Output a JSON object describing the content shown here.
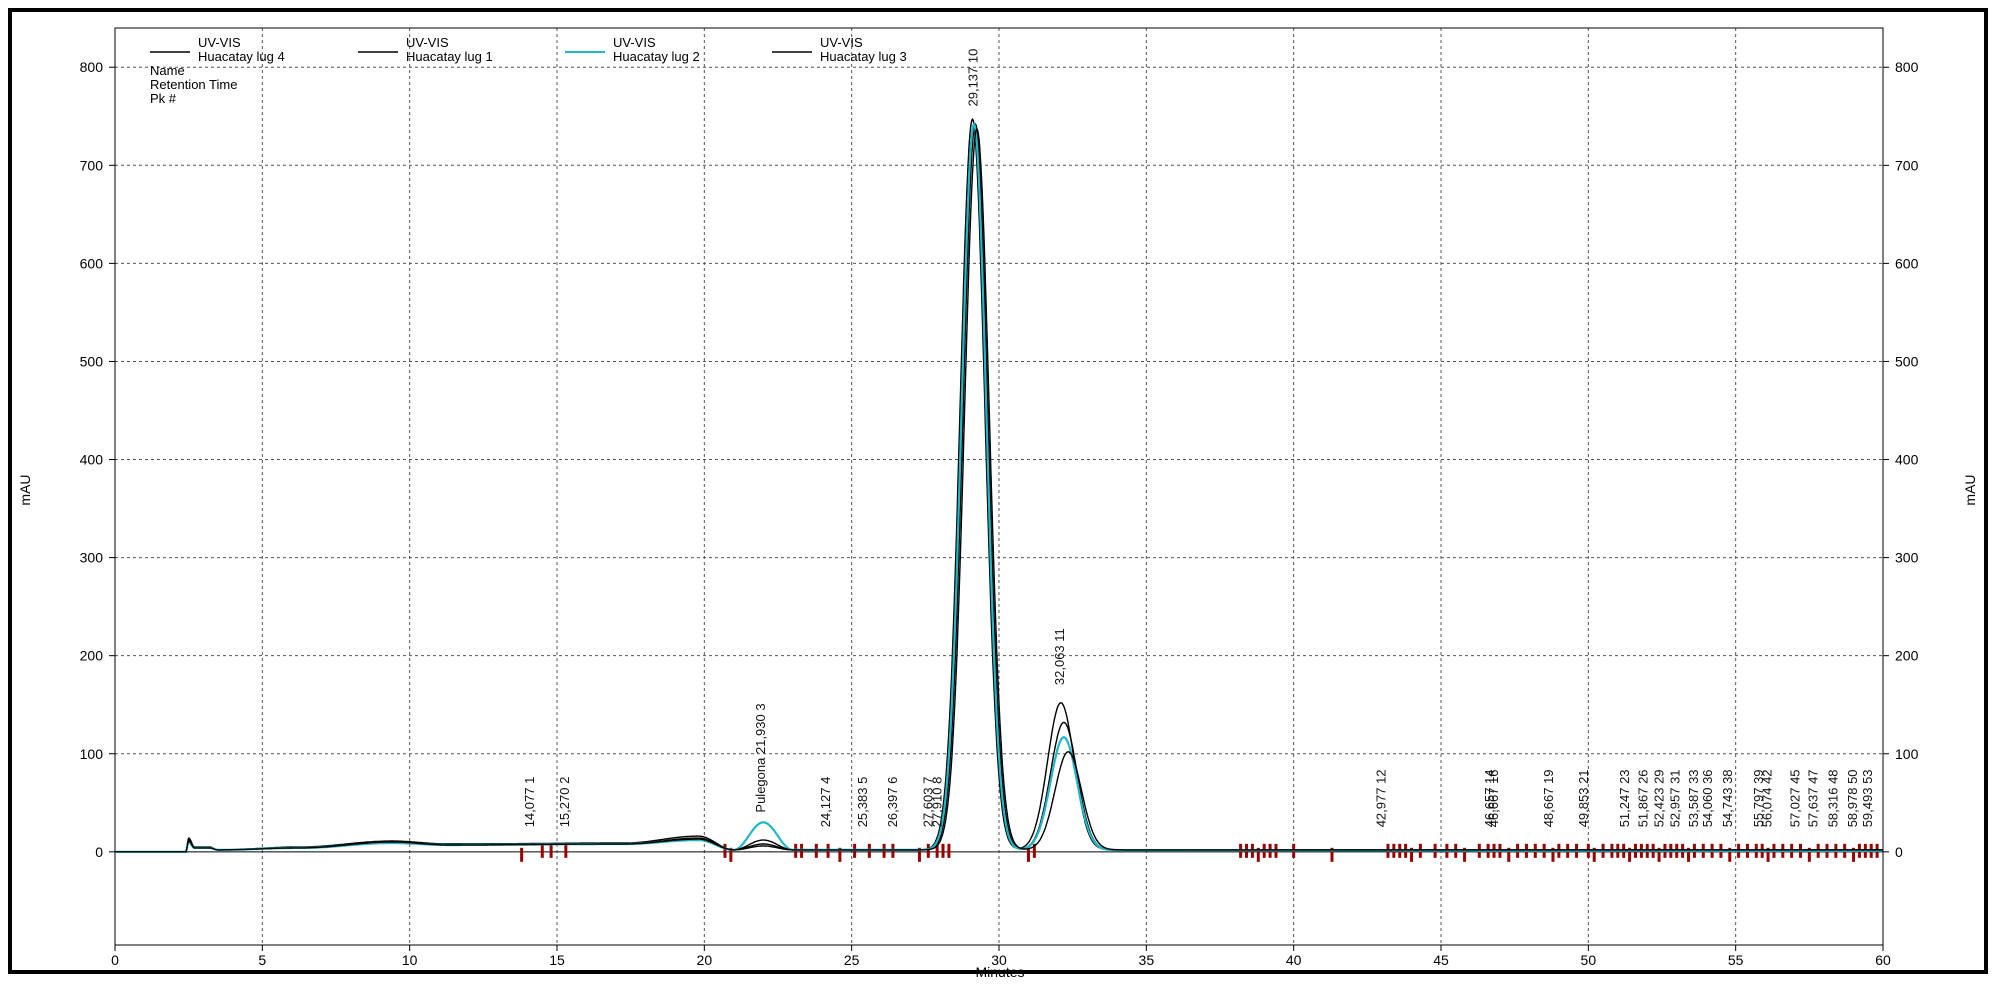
{
  "chart_data": {
    "type": "line",
    "xlabel": "Minutes",
    "ylabel": "mAU",
    "ylabel_right": "mAU",
    "xlim": [
      0,
      60
    ],
    "ylim": [
      -95,
      840
    ],
    "x_ticks": [
      0,
      5,
      10,
      15,
      20,
      25,
      30,
      35,
      40,
      45,
      50,
      55,
      60
    ],
    "y_ticks": [
      0,
      100,
      200,
      300,
      400,
      500,
      600,
      700,
      800
    ],
    "grid": true,
    "legend": {
      "placement": "top-left",
      "info_lines": [
        "Name",
        "Retention Time",
        "Pk #"
      ],
      "entries": [
        {
          "line1": "UV-VIS",
          "line2": "Huacatay lug 4",
          "color": "#000000"
        },
        {
          "line1": "UV-VIS",
          "line2": "Huacatay lug 1",
          "color": "#000000"
        },
        {
          "line1": "UV-VIS",
          "line2": "Huacatay lug 2",
          "color": "#20b8c8"
        },
        {
          "line1": "UV-VIS",
          "line2": "Huacatay lug 3",
          "color": "#000000"
        }
      ]
    },
    "series": [
      {
        "name": "Huacatay lug 4",
        "color": "#000000",
        "baseline": [
          [
            2.4,
            0
          ],
          [
            2.5,
            12
          ],
          [
            2.7,
            4
          ],
          [
            3.2,
            4
          ],
          [
            3.5,
            2
          ],
          [
            6.3,
            4
          ],
          [
            9.4,
            10
          ],
          [
            11.3,
            8
          ],
          [
            17.3,
            8
          ],
          [
            19.8,
            14
          ],
          [
            21,
            2
          ],
          [
            22,
            8
          ],
          [
            23,
            2
          ],
          [
            60,
            2
          ]
        ],
        "peaks": [
          {
            "rt": 29.1,
            "height": 745,
            "width": 0.42
          },
          {
            "rt": 32.1,
            "height": 150,
            "width": 0.45
          }
        ]
      },
      {
        "name": "Huacatay lug 1",
        "color": "#000000",
        "baseline": [
          [
            2.4,
            0
          ],
          [
            2.5,
            14
          ],
          [
            2.7,
            5
          ],
          [
            3.2,
            5
          ],
          [
            3.5,
            2
          ],
          [
            6.3,
            5
          ],
          [
            9.4,
            11
          ],
          [
            11.3,
            8
          ],
          [
            17.3,
            9
          ],
          [
            19.8,
            16
          ],
          [
            21,
            2
          ],
          [
            22,
            6
          ],
          [
            23,
            2
          ],
          [
            60,
            2
          ]
        ],
        "peaks": [
          {
            "rt": 29.2,
            "height": 740,
            "width": 0.42
          },
          {
            "rt": 32.2,
            "height": 130,
            "width": 0.45
          }
        ]
      },
      {
        "name": "Huacatay lug 2",
        "color": "#20b8c8",
        "baseline": [
          [
            2.4,
            0
          ],
          [
            2.5,
            10
          ],
          [
            2.7,
            4
          ],
          [
            3.2,
            4
          ],
          [
            3.5,
            2
          ],
          [
            6.3,
            4
          ],
          [
            9.4,
            9
          ],
          [
            11.3,
            7
          ],
          [
            17.3,
            8
          ],
          [
            19.8,
            12
          ],
          [
            21,
            2
          ],
          [
            22,
            30
          ],
          [
            23,
            2
          ],
          [
            60,
            1
          ]
        ],
        "peaks": [
          {
            "rt": 29.15,
            "height": 740,
            "width": 0.42
          },
          {
            "rt": 32.2,
            "height": 115,
            "width": 0.45
          }
        ]
      },
      {
        "name": "Huacatay lug 3",
        "color": "#000000",
        "baseline": [
          [
            2.4,
            0
          ],
          [
            2.5,
            11
          ],
          [
            2.7,
            4
          ],
          [
            3.2,
            4
          ],
          [
            3.5,
            2
          ],
          [
            6.3,
            4
          ],
          [
            9.4,
            10
          ],
          [
            11.3,
            7
          ],
          [
            17.3,
            8
          ],
          [
            19.8,
            13
          ],
          [
            21,
            2
          ],
          [
            22,
            12
          ],
          [
            23,
            2
          ],
          [
            60,
            2
          ]
        ],
        "peaks": [
          {
            "rt": 29.25,
            "height": 735,
            "width": 0.42
          },
          {
            "rt": 32.35,
            "height": 100,
            "width": 0.45
          }
        ]
      }
    ],
    "peak_labels": [
      {
        "text": "14,077  1",
        "x": 14.077,
        "y": 25
      },
      {
        "text": "15,270  2",
        "x": 15.27,
        "y": 25
      },
      {
        "text": "Pulegona  21,930  3",
        "x": 21.93,
        "y": 40
      },
      {
        "text": "24,127  4",
        "x": 24.127,
        "y": 25
      },
      {
        "text": "25,383  5",
        "x": 25.383,
        "y": 25
      },
      {
        "text": "26,397  6",
        "x": 26.397,
        "y": 25
      },
      {
        "text": "27,603  7",
        "x": 27.603,
        "y": 25
      },
      {
        "text": "27,910  8",
        "x": 27.91,
        "y": 25
      },
      {
        "text": "29,137  10",
        "x": 29.137,
        "y": 760
      },
      {
        "text": "32,063  11",
        "x": 32.063,
        "y": 170
      },
      {
        "text": "42,977  12",
        "x": 42.977,
        "y": 25
      },
      {
        "text": "46,657  14",
        "x": 46.657,
        "y": 25
      },
      {
        "text": "46,667  16",
        "x": 46.8,
        "y": 25
      },
      {
        "text": "48,667  19",
        "x": 48.667,
        "y": 25
      },
      {
        "text": "49,853  21",
        "x": 49.853,
        "y": 25
      },
      {
        "text": "51,247  23",
        "x": 51.247,
        "y": 25
      },
      {
        "text": "51,867  26",
        "x": 51.867,
        "y": 25
      },
      {
        "text": "52,423  29",
        "x": 52.423,
        "y": 25
      },
      {
        "text": "52,957  31",
        "x": 52.957,
        "y": 25
      },
      {
        "text": "53,587  33",
        "x": 53.587,
        "y": 25
      },
      {
        "text": "54,060  36",
        "x": 54.06,
        "y": 25
      },
      {
        "text": "54,743  38",
        "x": 54.743,
        "y": 25
      },
      {
        "text": "55,797  39",
        "x": 55.797,
        "y": 25
      },
      {
        "text": "56,074  42",
        "x": 56.074,
        "y": 25
      },
      {
        "text": "57,027  45",
        "x": 57.027,
        "y": 25
      },
      {
        "text": "57,637  47",
        "x": 57.637,
        "y": 25
      },
      {
        "text": "58,316  48",
        "x": 58.316,
        "y": 25
      },
      {
        "text": "58,978  50",
        "x": 58.978,
        "y": 25
      },
      {
        "text": "59,493  53",
        "x": 59.493,
        "y": 25
      }
    ],
    "peak_markers": [
      13.8,
      14.5,
      14.8,
      15.3,
      20.7,
      20.9,
      23.1,
      23.3,
      23.8,
      24.2,
      24.6,
      25.1,
      25.6,
      26.1,
      26.4,
      27.3,
      27.6,
      27.9,
      28.1,
      28.3,
      31.0,
      31.2,
      38.2,
      38.4,
      38.6,
      38.8,
      39.0,
      39.2,
      39.4,
      40.0,
      41.3,
      43.2,
      43.4,
      43.6,
      43.8,
      44.0,
      44.3,
      44.8,
      45.2,
      45.5,
      45.8,
      46.3,
      46.6,
      46.8,
      47.0,
      47.3,
      47.6,
      47.9,
      48.2,
      48.5,
      48.8,
      49.0,
      49.3,
      49.6,
      50.0,
      50.2,
      50.5,
      50.8,
      51.0,
      51.2,
      51.4,
      51.6,
      51.8,
      52.0,
      52.2,
      52.4,
      52.6,
      52.8,
      53.0,
      53.2,
      53.4,
      53.6,
      53.9,
      54.2,
      54.5,
      54.8,
      55.1,
      55.4,
      55.7,
      55.9,
      56.1,
      56.3,
      56.6,
      56.9,
      57.2,
      57.5,
      57.8,
      58.1,
      58.4,
      58.7,
      59.0,
      59.2,
      59.4,
      59.6,
      59.8
    ]
  }
}
